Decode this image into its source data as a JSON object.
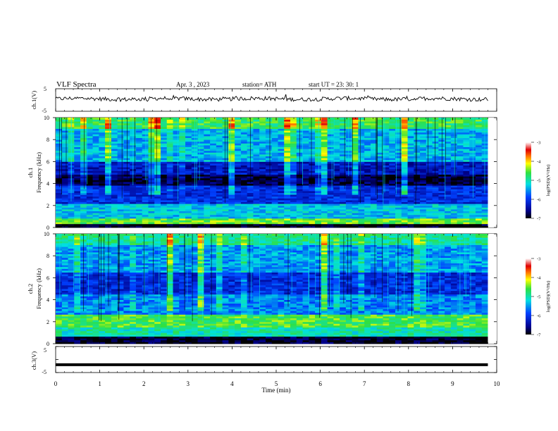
{
  "header": {
    "title": "VLF  Spectra",
    "date": "Apr. 3  , 2023",
    "station": "station= ATH",
    "start": "start  UT  =    23: 30: 1"
  },
  "chart_data": [
    {
      "type": "line",
      "ylabel": "ch.1(V)",
      "ylim": [
        -5,
        5
      ],
      "yticks": [
        "5",
        "-5"
      ],
      "xlim": [
        0,
        10
      ],
      "series": [
        {
          "color": "#000000",
          "baseline": 0.5,
          "noise_amplitude": 0.4
        }
      ]
    },
    {
      "type": "heatmap",
      "ylabel": "ch.1\nFrequency  (kHz)",
      "ylim": [
        0,
        10
      ],
      "yticks": [
        "0",
        "2",
        "4",
        "6",
        "8",
        "10"
      ],
      "xlim": [
        0,
        9.8
      ],
      "colorbar": {
        "label": "log(PSD)(V²/Hz)",
        "range": [
          -7,
          -3
        ],
        "ticks": [
          "-3",
          "-4",
          "-5",
          "-6",
          "-7"
        ]
      },
      "bands": [
        {
          "from": 9.0,
          "to": 10.0,
          "level": -4.7
        },
        {
          "from": 6.0,
          "to": 9.0,
          "level": -5.4
        },
        {
          "from": 4.8,
          "to": 6.0,
          "level": -6.3
        },
        {
          "from": 3.8,
          "to": 4.8,
          "level": -6.8
        },
        {
          "from": 2.2,
          "to": 3.8,
          "level": -6.1
        },
        {
          "from": 0.9,
          "to": 2.2,
          "level": -5.3
        },
        {
          "from": 0.3,
          "to": 0.9,
          "level": -4.5
        },
        {
          "from": 0.0,
          "to": 0.3,
          "level": -7.0
        }
      ]
    },
    {
      "type": "heatmap",
      "ylabel": "ch.2\nFrequency  (kHz)",
      "ylim": [
        0,
        10
      ],
      "yticks": [
        "0",
        "2",
        "4",
        "6",
        "8",
        "10"
      ],
      "xlim": [
        0,
        9.8
      ],
      "colorbar": {
        "label": "log(PSD)(V²/Hz)",
        "range": [
          -7,
          -3
        ],
        "ticks": [
          "-3",
          "-4",
          "-5",
          "-6",
          "-7"
        ]
      },
      "bands": [
        {
          "from": 9.0,
          "to": 10.0,
          "level": -4.9
        },
        {
          "from": 6.5,
          "to": 9.0,
          "level": -5.5
        },
        {
          "from": 4.5,
          "to": 6.5,
          "level": -6.1
        },
        {
          "from": 2.7,
          "to": 4.5,
          "level": -5.6
        },
        {
          "from": 1.5,
          "to": 2.7,
          "level": -4.6
        },
        {
          "from": 0.6,
          "to": 1.5,
          "level": -5.0
        },
        {
          "from": 0.0,
          "to": 0.6,
          "level": -6.9
        }
      ]
    },
    {
      "type": "line",
      "ylabel": "ch.3(V)",
      "ylim": [
        -5,
        5
      ],
      "yticks": [
        "5",
        "0",
        "-5"
      ],
      "xlim": [
        0,
        10
      ],
      "xlabel": "Time  (min)",
      "xticks": [
        "0",
        "1",
        "2",
        "3",
        "4",
        "5",
        "6",
        "7",
        "8",
        "9",
        "10"
      ],
      "series": [
        {
          "color": "#000000",
          "constant": -2
        }
      ]
    }
  ]
}
